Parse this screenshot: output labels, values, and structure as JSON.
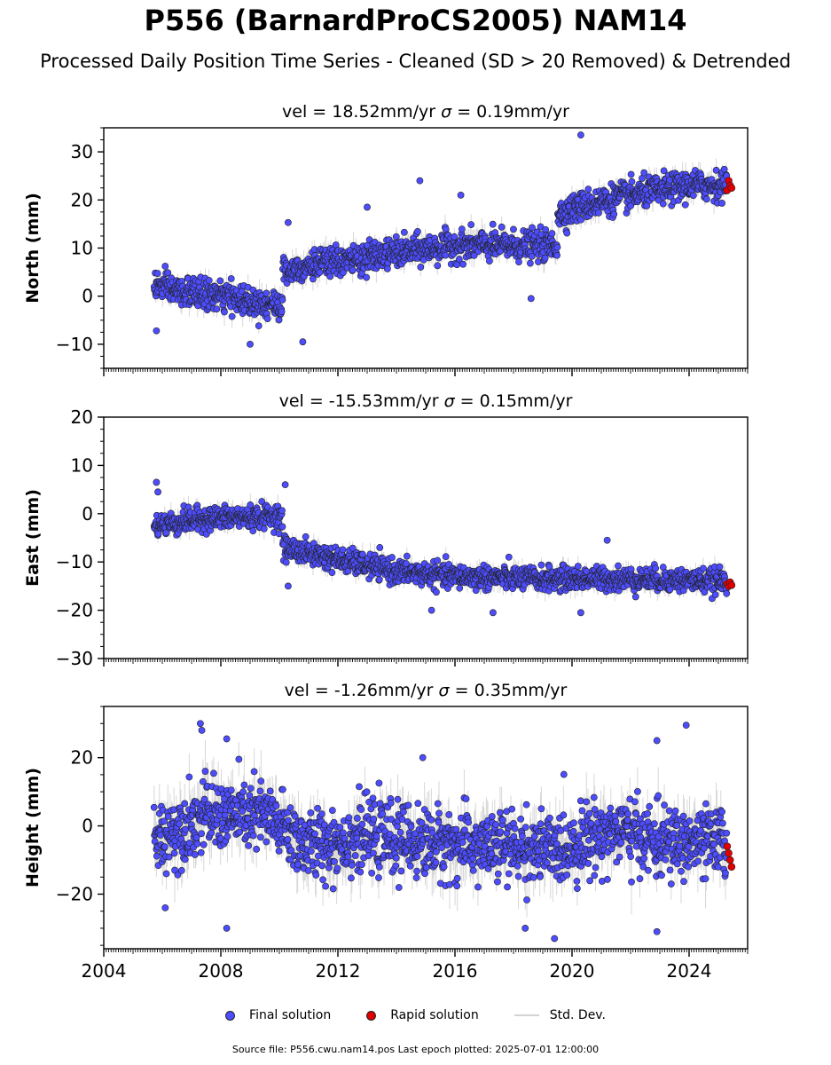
{
  "title": "P556 (BarnardProCS2005) NAM14",
  "subtitle": "Processed Daily Position Time Series - Cleaned (SD > 20 Removed) & Detrended",
  "legend": {
    "final": "Final solution",
    "rapid": "Rapid solution",
    "std": "Std. Dev."
  },
  "footer": "Source file: P556.cwu.nam14.pos  Last epoch plotted: 2025-07-01 12:00:00",
  "colors": {
    "final": "#4d4dff",
    "rapid": "#e00000",
    "std": "#d3d3d3",
    "edge": "#222222"
  },
  "chart_data": [
    {
      "type": "scatter",
      "title": "vel = 18.52mm/yr   σ = 0.19mm/yr",
      "title_text": "vel = 18.52mm/yr",
      "sigma_text": "= 0.19mm/yr",
      "ylabel": "North (mm)",
      "xlabel": "",
      "xlim": [
        2004,
        2026
      ],
      "ylim": [
        -15,
        35
      ],
      "yticks": [
        -10,
        0,
        10,
        20,
        30
      ],
      "ytick_labels": [
        "−10",
        "0",
        "10",
        "20",
        "30"
      ],
      "show_xtick_labels": false,
      "series_trend": [
        {
          "x": 2005.7,
          "y": 2.5
        },
        {
          "x": 2006.5,
          "y": 1.0
        },
        {
          "x": 2008.0,
          "y": 0.0
        },
        {
          "x": 2009.5,
          "y": -1.5
        },
        {
          "x": 2010.1,
          "y": -2.0
        },
        {
          "x": 2010.11,
          "y": 5.0
        },
        {
          "x": 2011.0,
          "y": 6.5
        },
        {
          "x": 2012.5,
          "y": 7.5
        },
        {
          "x": 2014.0,
          "y": 9.0
        },
        {
          "x": 2016.0,
          "y": 10.5
        },
        {
          "x": 2018.0,
          "y": 10.5
        },
        {
          "x": 2019.5,
          "y": 10.5
        },
        {
          "x": 2019.51,
          "y": 17.0
        },
        {
          "x": 2020.5,
          "y": 19.0
        },
        {
          "x": 2022.0,
          "y": 21.0
        },
        {
          "x": 2024.0,
          "y": 23.0
        },
        {
          "x": 2025.3,
          "y": 23.0
        }
      ],
      "noise": 1.5,
      "std_band": 2.0,
      "outliers": [
        {
          "x": 2020.3,
          "y": 33.5
        },
        {
          "x": 2014.8,
          "y": 24.0
        },
        {
          "x": 2018.6,
          "y": -0.5
        },
        {
          "x": 2005.8,
          "y": -7.2
        },
        {
          "x": 2009.0,
          "y": -10.0
        },
        {
          "x": 2010.8,
          "y": -9.5
        },
        {
          "x": 2013.0,
          "y": 18.5
        },
        {
          "x": 2016.2,
          "y": 21.0
        },
        {
          "x": 2010.3,
          "y": 15.3
        }
      ],
      "rapid": {
        "x": [
          2025.3,
          2025.35,
          2025.4,
          2025.45
        ],
        "y": [
          22.0,
          24.0,
          23.0,
          22.5
        ]
      }
    },
    {
      "type": "scatter",
      "title": "vel = -15.53mm/yr   σ = 0.15mm/yr",
      "title_text": "vel = -15.53mm/yr",
      "sigma_text": "= 0.15mm/yr",
      "ylabel": "East (mm)",
      "xlabel": "",
      "xlim": [
        2004,
        2026
      ],
      "ylim": [
        -30,
        20
      ],
      "yticks": [
        -30,
        -20,
        -10,
        0,
        10,
        20
      ],
      "ytick_labels": [
        "−30",
        "−20",
        "−10",
        "0",
        "10",
        "20"
      ],
      "show_xtick_labels": false,
      "series_trend": [
        {
          "x": 2005.7,
          "y": -2.5
        },
        {
          "x": 2007.5,
          "y": -1.0
        },
        {
          "x": 2010.1,
          "y": -0.5
        },
        {
          "x": 2010.11,
          "y": -7.0
        },
        {
          "x": 2012.0,
          "y": -9.5
        },
        {
          "x": 2014.0,
          "y": -12.0
        },
        {
          "x": 2016.0,
          "y": -13.0
        },
        {
          "x": 2019.0,
          "y": -13.5
        },
        {
          "x": 2022.0,
          "y": -13.5
        },
        {
          "x": 2025.3,
          "y": -14.0
        }
      ],
      "noise": 1.2,
      "std_band": 1.6,
      "outliers": [
        {
          "x": 2005.8,
          "y": 6.5
        },
        {
          "x": 2005.85,
          "y": 4.5
        },
        {
          "x": 2010.2,
          "y": 6.0
        },
        {
          "x": 2010.3,
          "y": -15.0
        },
        {
          "x": 2015.2,
          "y": -20.0
        },
        {
          "x": 2017.3,
          "y": -20.5
        },
        {
          "x": 2020.3,
          "y": -20.5
        },
        {
          "x": 2021.2,
          "y": -5.5
        }
      ],
      "rapid": {
        "x": [
          2025.3,
          2025.35,
          2025.4,
          2025.45
        ],
        "y": [
          -14.5,
          -15.0,
          -14.2,
          -14.8
        ]
      }
    },
    {
      "type": "scatter",
      "title": "vel = -1.26mm/yr   σ = 0.35mm/yr",
      "title_text": "vel = -1.26mm/yr",
      "sigma_text": "= 0.35mm/yr",
      "ylabel": "Height (mm)",
      "xlabel": "",
      "xlim": [
        2004,
        2026
      ],
      "ylim": [
        -36,
        35
      ],
      "yticks": [
        -20,
        0,
        20
      ],
      "ytick_labels": [
        "−20",
        "0",
        "20"
      ],
      "show_xtick_labels": true,
      "xticks": [
        2004,
        2008,
        2012,
        2016,
        2020,
        2024
      ],
      "xtick_labels": [
        "2004",
        "2008",
        "2012",
        "2016",
        "2020",
        "2024"
      ],
      "series_trend": [
        {
          "x": 2005.7,
          "y": -4.0
        },
        {
          "x": 2007.5,
          "y": 3.0
        },
        {
          "x": 2009.5,
          "y": 3.0
        },
        {
          "x": 2011.0,
          "y": -6.0
        },
        {
          "x": 2013.0,
          "y": -3.0
        },
        {
          "x": 2015.0,
          "y": -5.0
        },
        {
          "x": 2017.0,
          "y": -6.0
        },
        {
          "x": 2019.5,
          "y": -7.0
        },
        {
          "x": 2021.5,
          "y": -1.0
        },
        {
          "x": 2023.0,
          "y": -5.0
        },
        {
          "x": 2025.3,
          "y": -5.0
        }
      ],
      "noise": 5.0,
      "std_band": 6.5,
      "outliers": [
        {
          "x": 2007.3,
          "y": 30.0
        },
        {
          "x": 2007.35,
          "y": 28.0
        },
        {
          "x": 2008.2,
          "y": 25.5
        },
        {
          "x": 2008.2,
          "y": -30.0
        },
        {
          "x": 2023.9,
          "y": 29.5
        },
        {
          "x": 2022.9,
          "y": 25.0
        },
        {
          "x": 2019.4,
          "y": -33.0
        },
        {
          "x": 2022.9,
          "y": -31.0
        },
        {
          "x": 2018.4,
          "y": -30.0
        },
        {
          "x": 2014.9,
          "y": 20.0
        },
        {
          "x": 2006.1,
          "y": -24.0
        }
      ],
      "rapid": {
        "x": [
          2025.3,
          2025.35,
          2025.4,
          2025.45
        ],
        "y": [
          -6.0,
          -8.0,
          -10.0,
          -12.0
        ]
      }
    }
  ]
}
